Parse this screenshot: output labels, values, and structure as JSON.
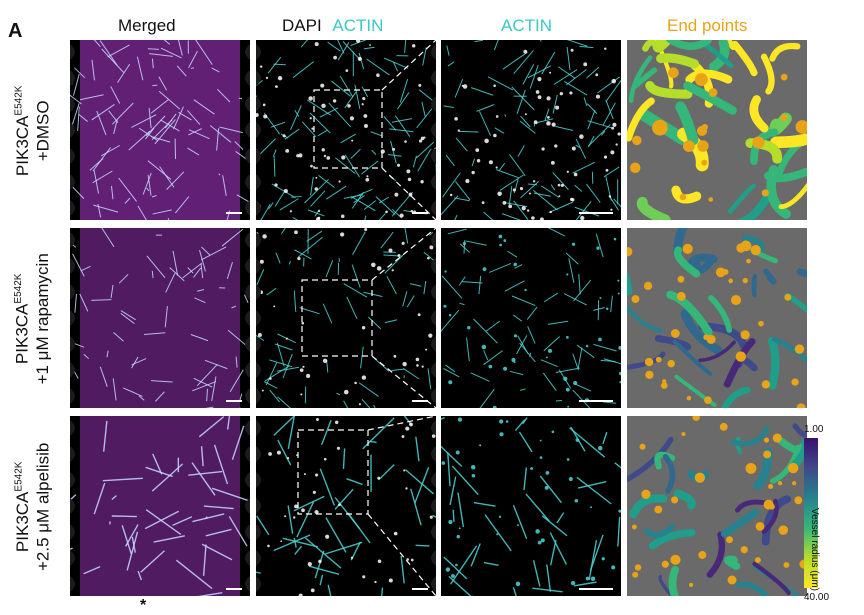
{
  "panel_letter": "A",
  "columns": {
    "merged": "Merged",
    "dapi": "DAPI",
    "actin_overlay": "ACTIN",
    "actin": "ACTIN",
    "end_points": "End points"
  },
  "rows": [
    {
      "line1": "PIK3CA",
      "sup": "E542K",
      "line2": "+DMSO"
    },
    {
      "line1": "PIK3CA",
      "sup": "E542K",
      "line2": "+1 μM rapamycin"
    },
    {
      "line1": "PIK3CA",
      "sup": "E542K",
      "line2": "+2.5 μM alpelisib"
    }
  ],
  "colorbar": {
    "title": "Vessel radius (μm)",
    "min_label": "1.00",
    "max_label": "40.00"
  },
  "footnote_mark": "*",
  "colors": {
    "dapi_white": "#ffffff",
    "actin_cyan": "#4fd6d6",
    "merged_magenta": "#b23bd6",
    "end_points_orange": "#e8a317",
    "render_bg": "#6a6a6a"
  }
}
